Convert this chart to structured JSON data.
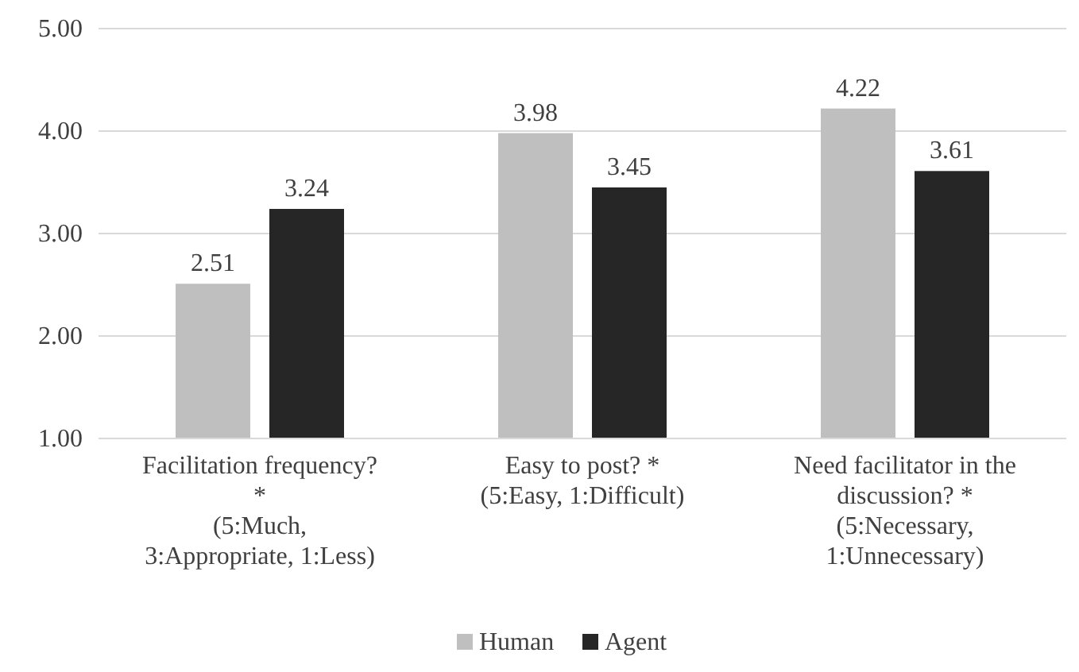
{
  "chart_data": {
    "type": "bar",
    "categories": [
      "Facilitation frequency?\n*\n(5:Much,\n3:Appropriate, 1:Less)",
      "Easy to post? *\n(5:Easy, 1:Difficult)",
      "Need facilitator in the\ndiscussion? *\n(5:Necessary,\n1:Unnecessary)"
    ],
    "series": [
      {
        "name": "Human",
        "color": "#bfbfbf",
        "values": [
          2.51,
          3.98,
          4.22
        ]
      },
      {
        "name": "Agent",
        "color": "#262626",
        "values": [
          3.24,
          3.45,
          3.61
        ]
      }
    ],
    "ylim": [
      1,
      5
    ],
    "yticks": [
      {
        "value": 1,
        "label": "1.00"
      },
      {
        "value": 2,
        "label": "2.00"
      },
      {
        "value": 3,
        "label": "3.00"
      },
      {
        "value": 4,
        "label": "4.00"
      },
      {
        "value": 5,
        "label": "5.00"
      }
    ],
    "grid": "y",
    "legend": "bottom",
    "data_labels": true
  }
}
